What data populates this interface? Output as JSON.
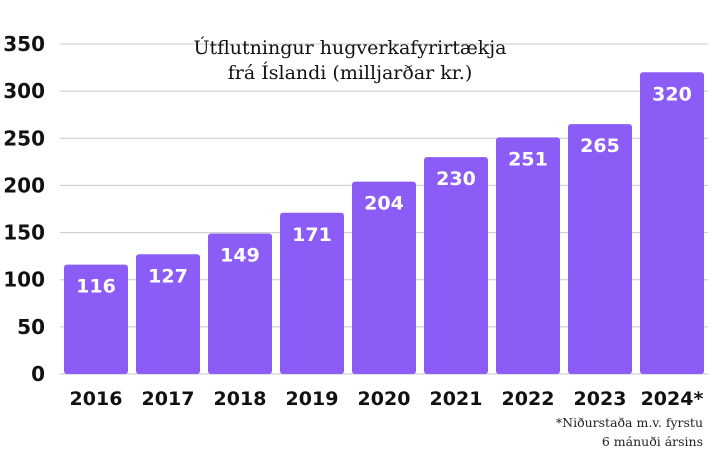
{
  "chart_data": {
    "type": "bar",
    "title_lines": [
      "Útflutningur hugverkafyrirtækja",
      "frá Íslandi (milljarðar kr.)"
    ],
    "categories": [
      "2016",
      "2017",
      "2018",
      "2019",
      "2020",
      "2021",
      "2022",
      "2023",
      "2024*"
    ],
    "values": [
      116,
      127,
      149,
      171,
      204,
      230,
      251,
      265,
      320
    ],
    "y_ticks": [
      0,
      50,
      100,
      150,
      200,
      250,
      300,
      350
    ],
    "ylim": [
      0,
      350
    ],
    "grid": true,
    "legend": "none",
    "bar_color": "#8b5cf6",
    "grid_color": "#c8c8c8",
    "footnote_lines": [
      "*Niðurstaða m.v. fyrstu",
      "6 mánuði ársins"
    ]
  }
}
